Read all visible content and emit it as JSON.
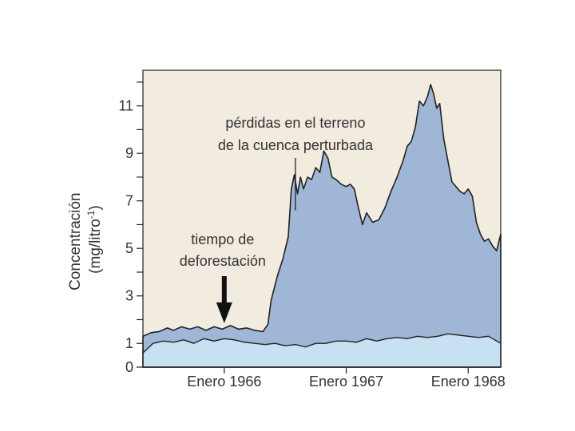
{
  "chart_data": {
    "type": "area",
    "ylabel_line1": "Concentración",
    "ylabel_line2": "(mg/litro",
    "ylabel_sup": "-1",
    "ylabel_close": ")",
    "ylim": [
      0,
      12.5
    ],
    "y_ticks_labeled": [
      0,
      1,
      3,
      5,
      7,
      9,
      11
    ],
    "y_ticks_minor": [
      2,
      4,
      6,
      8,
      10,
      12
    ],
    "x_ticks": [
      {
        "label": "Enero 1966",
        "t": 10.0
      },
      {
        "label": "Enero 1967",
        "t": 22.0
      },
      {
        "label": "Enero 1968",
        "t": 34.0
      }
    ],
    "xlim": [
      2.0,
      37.2
    ],
    "grid": false,
    "annotations": {
      "deforestation_line1": "tiempo de",
      "deforestation_line2": "deforestación",
      "deforestation_t": 10.0,
      "losses_line1": "pérdidas en el terreno",
      "losses_line2": "de la cuenca perturbada",
      "losses_t": 17.0
    },
    "series": [
      {
        "x": [
          2.0,
          2.8,
          3.6,
          4.4,
          5.0,
          5.8,
          6.6,
          7.4,
          8.2,
          9.0,
          9.8,
          10.6,
          11.4,
          12.2,
          13.0,
          13.8,
          14.3,
          14.6,
          15.2,
          15.8,
          16.3,
          16.6,
          16.9,
          17.2,
          17.5,
          17.8,
          18.2,
          18.6,
          19.0,
          19.4,
          19.8,
          20.2,
          20.6,
          21.0,
          21.5,
          22.0,
          22.4,
          22.8,
          23.2,
          23.6,
          24.0,
          24.6,
          25.2,
          25.8,
          26.4,
          27.0,
          27.6,
          28.0,
          28.4,
          28.8,
          29.2,
          29.6,
          30.0,
          30.3,
          30.6,
          30.9,
          31.2,
          31.6,
          32.0,
          32.4,
          32.8,
          33.2,
          33.6,
          34.0,
          34.4,
          34.8,
          35.2,
          35.6,
          36.0,
          36.4,
          36.8,
          37.2
        ],
        "values": [
          1.3,
          1.45,
          1.5,
          1.65,
          1.55,
          1.7,
          1.6,
          1.7,
          1.55,
          1.7,
          1.6,
          1.75,
          1.6,
          1.65,
          1.55,
          1.5,
          1.8,
          2.8,
          3.8,
          4.6,
          5.5,
          7.5,
          8.1,
          7.3,
          8.0,
          7.5,
          8.0,
          7.9,
          8.4,
          8.2,
          9.1,
          8.8,
          8.0,
          7.9,
          7.7,
          7.6,
          7.7,
          7.5,
          6.7,
          6.0,
          6.5,
          6.1,
          6.2,
          6.7,
          7.4,
          8.0,
          8.7,
          9.3,
          9.5,
          10.1,
          11.2,
          11.0,
          11.4,
          11.9,
          11.5,
          10.9,
          11.1,
          9.6,
          8.7,
          7.8,
          7.6,
          7.4,
          7.3,
          7.5,
          7.2,
          6.1,
          5.6,
          5.3,
          5.4,
          5.1,
          4.9,
          5.6
        ]
      },
      {
        "x": [
          2.0,
          3.0,
          4.0,
          5.0,
          6.0,
          7.0,
          8.0,
          9.0,
          10.0,
          11.0,
          12.0,
          13.0,
          14.0,
          15.0,
          16.0,
          17.0,
          18.0,
          19.0,
          20.0,
          21.0,
          22.0,
          23.0,
          24.0,
          25.0,
          26.0,
          27.0,
          28.0,
          29.0,
          30.0,
          31.0,
          32.0,
          33.0,
          34.0,
          35.0,
          36.0,
          37.2
        ],
        "values": [
          0.6,
          1.0,
          1.1,
          1.05,
          1.15,
          1.0,
          1.2,
          1.1,
          1.2,
          1.15,
          1.05,
          1.0,
          0.95,
          1.0,
          0.9,
          0.95,
          0.85,
          1.0,
          1.0,
          1.1,
          1.1,
          1.05,
          1.2,
          1.1,
          1.2,
          1.25,
          1.2,
          1.3,
          1.25,
          1.3,
          1.4,
          1.35,
          1.3,
          1.25,
          1.3,
          1.0
        ]
      }
    ],
    "colors": {
      "plot_background": "#f1ebe0",
      "upper_fill": "#9fb6d6",
      "lower_fill": "#c7e0f2",
      "line": "#222222",
      "text": "#333333"
    }
  }
}
